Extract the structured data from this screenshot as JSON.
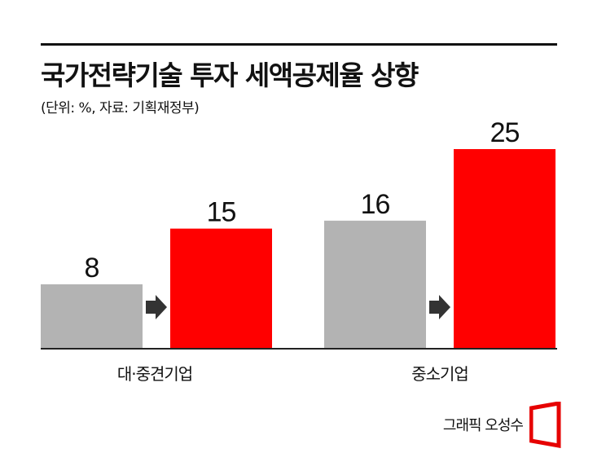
{
  "title": "국가전략기술 투자 세액공제율 상향",
  "subtitle": "(단위: %, 자료: 기획재정부)",
  "credit": "그래픽 오성수",
  "colors": {
    "before": "#b3b3b3",
    "after": "#ff0000",
    "arrow": "#333333",
    "text": "#111111"
  },
  "chart_data": {
    "type": "bar",
    "categories": [
      "대·중견기업",
      "중소기업"
    ],
    "series": [
      {
        "values": [
          8,
          16
        ]
      },
      {
        "values": [
          15,
          25
        ]
      }
    ],
    "ylim": [
      0,
      25
    ],
    "grid": false,
    "legend": "none",
    "annotations": [
      "arrow from before-bar to after-bar in each group"
    ]
  }
}
